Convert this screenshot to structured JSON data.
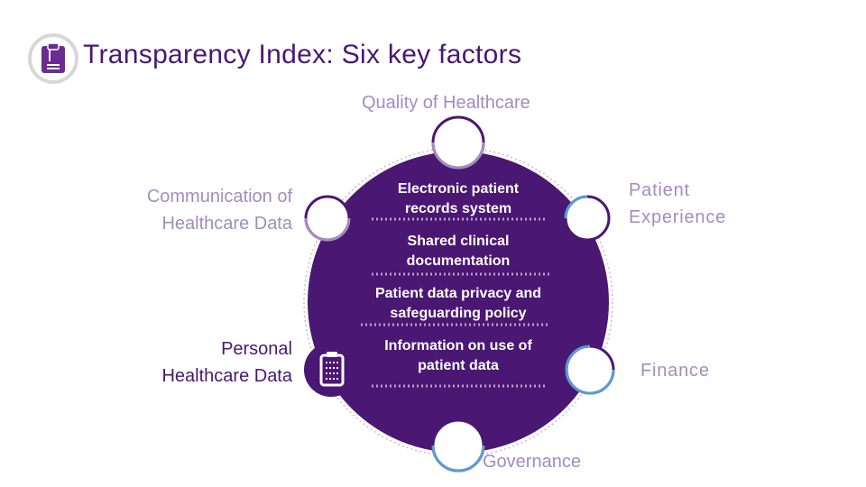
{
  "header": {
    "title": "Transparency Index: Six key factors",
    "icon": "clipboard-icon"
  },
  "factors": {
    "quality": "Quality of Healthcare",
    "communication_line1": "Communication of",
    "communication_line2": "Healthcare Data",
    "patient_line1": "Patient",
    "patient_line2": "Experience",
    "personal_line1": "Personal",
    "personal_line2": "Healthcare Data",
    "finance": "Finance",
    "governance": "Governance"
  },
  "items": [
    {
      "line1": "Electronic patient",
      "line2": "records system"
    },
    {
      "line1": "Shared clinical",
      "line2": "documentation"
    },
    {
      "line1": "Patient data privacy and",
      "line2": "safeguarding policy"
    },
    {
      "line1": "Information on use of",
      "line2": "patient data"
    }
  ],
  "colors": {
    "circle": "#4a1772",
    "node_ring": "#4a1772",
    "node_ring_light": "#a38cbf",
    "node_ring_blue": "#5b9bd5",
    "factor_dark": "#4a1772",
    "factor_light": "#a38cbf"
  },
  "center_icon": "clipboard-icon"
}
